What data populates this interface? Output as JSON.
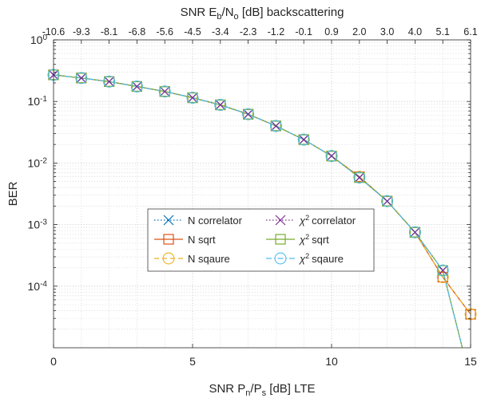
{
  "chart_data": {
    "type": "line",
    "ylabel": "BER",
    "xlabel_bottom": {
      "pre": "SNR P",
      "sub1": "n",
      "mid": "/P",
      "sub2": "s",
      "post": " [dB] LTE"
    },
    "xlabel_top": {
      "pre": "SNR E",
      "sub1": "b",
      "mid": "/N",
      "sub2": "o",
      "post": " [dB] backscattering"
    },
    "xlim": [
      0,
      15
    ],
    "ylim": [
      1e-05,
      1
    ],
    "y_scale": "log",
    "grid": true,
    "minor_grid": true,
    "x_ticks": [
      "0",
      "5",
      "10",
      "15"
    ],
    "y_ticks": [
      {
        "base": "10",
        "exp": "0",
        "value": 1
      },
      {
        "base": "10",
        "exp": "-1",
        "value": 0.1
      },
      {
        "base": "10",
        "exp": "-2",
        "value": 0.01
      },
      {
        "base": "10",
        "exp": "-3",
        "value": 0.001
      },
      {
        "base": "10",
        "exp": "-4",
        "value": 0.0001
      }
    ],
    "top_ticks": [
      "-10.6",
      "-9.3",
      "-8.1",
      "-6.8",
      "-5.6",
      "-4.5",
      "-3.4",
      "-2.3",
      "-1.2",
      "-0.1",
      "0.9",
      "2.0",
      "3.0",
      "4.0",
      "5.1",
      "6.1"
    ],
    "legend_position": "center-right",
    "x": [
      0,
      1,
      2,
      3,
      4,
      5,
      6,
      7,
      8,
      9,
      10,
      11,
      12,
      13,
      14,
      15
    ],
    "series": [
      {
        "label": "N correlator",
        "latex": false,
        "color": "#0072BD",
        "marker": "x",
        "dash": "dotted",
        "values": [
          0.27,
          0.24,
          0.21,
          0.175,
          0.145,
          0.115,
          0.088,
          0.062,
          0.04,
          0.024,
          0.013,
          0.0058,
          0.0024,
          0.00075,
          0.00018,
          null
        ]
      },
      {
        "label": "N sqrt",
        "latex": false,
        "color": "#D95319",
        "marker": "square",
        "dash": "solid",
        "values": [
          0.27,
          0.24,
          0.21,
          0.175,
          0.145,
          0.115,
          0.088,
          0.062,
          0.04,
          0.024,
          0.013,
          0.006,
          0.0024,
          0.00075,
          0.00014,
          3.5e-05
        ]
      },
      {
        "label": "N sqaure",
        "latex": false,
        "color": "#EDB120",
        "marker": "circle",
        "dash": "dashed",
        "values": [
          0.27,
          0.24,
          0.21,
          0.175,
          0.145,
          0.115,
          0.088,
          0.062,
          0.04,
          0.024,
          0.013,
          0.006,
          0.0024,
          0.00075,
          0.00014,
          3.5e-05
        ]
      },
      {
        "label": "correlator",
        "latex": true,
        "color": "#7E2F8E",
        "marker": "x",
        "dash": "dotted",
        "values": [
          0.27,
          0.24,
          0.21,
          0.175,
          0.145,
          0.115,
          0.088,
          0.062,
          0.04,
          0.024,
          0.013,
          0.0058,
          0.0024,
          0.00075,
          0.00018,
          null
        ]
      },
      {
        "label": "sqrt",
        "latex": true,
        "color": "#77AC30",
        "marker": "square",
        "dash": "solid",
        "values": [
          0.27,
          0.24,
          0.21,
          0.175,
          0.145,
          0.115,
          0.088,
          0.062,
          0.04,
          0.024,
          0.013,
          0.0058,
          0.0024,
          0.00075,
          0.00018,
          null
        ]
      },
      {
        "label": "sqaure",
        "latex": true,
        "color": "#4DBEEE",
        "marker": "circle",
        "dash": "dashdot",
        "values": [
          0.27,
          0.24,
          0.21,
          0.175,
          0.145,
          0.115,
          0.088,
          0.062,
          0.04,
          0.024,
          0.013,
          0.0058,
          0.0024,
          0.00075,
          0.00018,
          null
        ]
      }
    ],
    "latex_prefix": {
      "base": "χ",
      "exp": "2"
    }
  }
}
